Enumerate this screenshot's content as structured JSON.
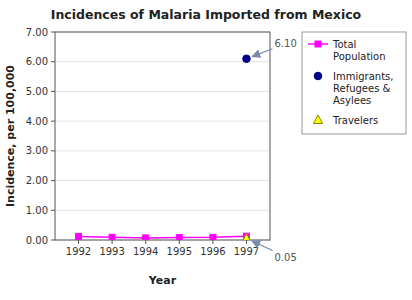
{
  "chart_data": {
    "type": "line",
    "title": "Incidences of Malaria Imported from Mexico",
    "x_label": "Year",
    "y_label": "Incidence, per 100,000",
    "x": [
      1992,
      1993,
      1994,
      1995,
      1996,
      1997
    ],
    "series": [
      {
        "name": "Total\nPopulation",
        "type": "line",
        "marker": "square",
        "color": "#ff00ff",
        "values": [
          0.12,
          0.09,
          0.07,
          0.08,
          0.09,
          0.13
        ]
      },
      {
        "name": "Immigrants,\nRefugees &\nAsylees",
        "type": "scatter",
        "marker": "circle",
        "color": "#00008b",
        "values": [
          null,
          null,
          null,
          null,
          null,
          6.1
        ]
      },
      {
        "name": "Travelers",
        "type": "scatter",
        "marker": "triangle",
        "color": "#ffff00",
        "values": [
          null,
          null,
          null,
          null,
          null,
          0.05
        ]
      }
    ],
    "xlim": [
      1991.3,
      1997.7
    ],
    "xticks": [
      1992,
      1993,
      1994,
      1995,
      1996,
      1997
    ],
    "ylim": [
      0,
      7.0
    ],
    "yticks": [
      {
        "value": 0.0,
        "label": "0.00"
      },
      {
        "value": 1.0,
        "label": "1.00"
      },
      {
        "value": 2.0,
        "label": "2.00"
      },
      {
        "value": 3.0,
        "label": "3.00"
      },
      {
        "value": 4.0,
        "label": "4.00"
      },
      {
        "value": 5.0,
        "label": "5.00"
      },
      {
        "value": 6.0,
        "label": "6.00"
      },
      {
        "value": 7.0,
        "label": "7.00"
      }
    ],
    "grid": true,
    "legend": "right",
    "annotations": [
      {
        "text": "6.10",
        "x": 1997,
        "y": 6.1
      },
      {
        "text": "0.05",
        "x": 1997,
        "y": 0.05
      }
    ]
  }
}
